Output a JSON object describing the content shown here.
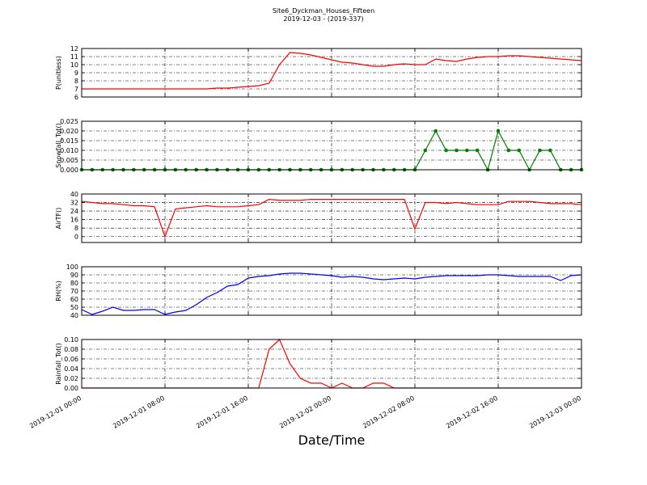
{
  "title": "Site6_Dyckman_Houses_Fifteen",
  "subtitle": "2019-12-03 - (2019-337)",
  "xlabel": "Date/Time",
  "chart_data": [
    {
      "type": "line",
      "ylabel": "P(unitless)",
      "color": "#ff0000",
      "grid": true,
      "x": [
        "2019-12-01 00:00",
        "2019-12-01 01:00",
        "2019-12-01 02:00",
        "2019-12-01 03:00",
        "2019-12-01 04:00",
        "2019-12-01 05:00",
        "2019-12-01 06:00",
        "2019-12-01 07:00",
        "2019-12-01 08:00",
        "2019-12-01 09:00",
        "2019-12-01 10:00",
        "2019-12-01 11:00",
        "2019-12-01 12:00",
        "2019-12-01 13:00",
        "2019-12-01 14:00",
        "2019-12-01 15:00",
        "2019-12-01 16:00",
        "2019-12-01 17:00",
        "2019-12-01 18:00",
        "2019-12-01 19:00",
        "2019-12-01 20:00",
        "2019-12-01 21:00",
        "2019-12-01 22:00",
        "2019-12-01 23:00",
        "2019-12-02 00:00",
        "2019-12-02 01:00",
        "2019-12-02 02:00",
        "2019-12-02 03:00",
        "2019-12-02 04:00",
        "2019-12-02 05:00",
        "2019-12-02 06:00",
        "2019-12-02 07:00",
        "2019-12-02 08:00",
        "2019-12-02 09:00",
        "2019-12-02 10:00",
        "2019-12-02 11:00",
        "2019-12-02 12:00",
        "2019-12-02 13:00",
        "2019-12-02 14:00",
        "2019-12-02 15:00",
        "2019-12-02 16:00",
        "2019-12-02 17:00",
        "2019-12-02 18:00",
        "2019-12-02 19:00",
        "2019-12-02 20:00",
        "2019-12-02 21:00",
        "2019-12-02 22:00",
        "2019-12-02 23:00",
        "2019-12-03 00:00"
      ],
      "values": [
        7.0,
        7.0,
        7.0,
        7.0,
        7.0,
        7.0,
        7.0,
        7.0,
        7.0,
        7.0,
        7.0,
        7.0,
        7.0,
        7.1,
        7.1,
        7.2,
        7.3,
        7.4,
        7.7,
        10.0,
        11.5,
        11.4,
        11.2,
        10.9,
        10.6,
        10.3,
        10.2,
        10.0,
        9.8,
        9.8,
        10.0,
        10.1,
        10.0,
        10.0,
        10.7,
        10.5,
        10.4,
        10.7,
        10.9,
        11.0,
        11.0,
        11.1,
        11.1,
        11.0,
        10.9,
        10.8,
        10.7,
        10.6,
        10.5
      ],
      "xlim": [
        "2019-12-01 00:00",
        "2019-12-03 00:00"
      ],
      "xticks": [
        "2019-12-01 00:00",
        "2019-12-01 08:00",
        "2019-12-01 16:00",
        "2019-12-02 00:00",
        "2019-12-02 08:00",
        "2019-12-02 16:00",
        "2019-12-03 00:00"
      ],
      "ylim": [
        6,
        12
      ],
      "yticks": [
        6,
        7,
        8,
        9,
        10,
        11,
        12
      ]
    },
    {
      "type": "line",
      "ylabel": "Snowfall_Tot()",
      "color": "#007f00",
      "markers": true,
      "grid": true,
      "x": [
        "2019-12-01 00:00",
        "2019-12-01 01:00",
        "2019-12-01 02:00",
        "2019-12-01 03:00",
        "2019-12-01 04:00",
        "2019-12-01 05:00",
        "2019-12-01 06:00",
        "2019-12-01 07:00",
        "2019-12-01 08:00",
        "2019-12-01 09:00",
        "2019-12-01 10:00",
        "2019-12-01 11:00",
        "2019-12-01 12:00",
        "2019-12-01 13:00",
        "2019-12-01 14:00",
        "2019-12-01 15:00",
        "2019-12-01 16:00",
        "2019-12-01 17:00",
        "2019-12-01 18:00",
        "2019-12-01 19:00",
        "2019-12-01 20:00",
        "2019-12-01 21:00",
        "2019-12-01 22:00",
        "2019-12-01 23:00",
        "2019-12-02 00:00",
        "2019-12-02 01:00",
        "2019-12-02 02:00",
        "2019-12-02 03:00",
        "2019-12-02 04:00",
        "2019-12-02 05:00",
        "2019-12-02 06:00",
        "2019-12-02 07:00",
        "2019-12-02 08:00",
        "2019-12-02 09:00",
        "2019-12-02 10:00",
        "2019-12-02 11:00",
        "2019-12-02 12:00",
        "2019-12-02 13:00",
        "2019-12-02 14:00",
        "2019-12-02 15:00",
        "2019-12-02 16:00",
        "2019-12-02 17:00",
        "2019-12-02 18:00",
        "2019-12-02 19:00",
        "2019-12-02 20:00",
        "2019-12-02 21:00",
        "2019-12-02 22:00",
        "2019-12-02 23:00",
        "2019-12-03 00:00"
      ],
      "values": [
        0,
        0,
        0,
        0,
        0,
        0,
        0,
        0,
        0,
        0,
        0,
        0,
        0,
        0,
        0,
        0,
        0,
        0,
        0,
        0,
        0,
        0,
        0,
        0,
        0,
        0,
        0,
        0,
        0,
        0,
        0,
        0,
        0,
        0.01,
        0.02,
        0.01,
        0.01,
        0.01,
        0.01,
        0,
        0.02,
        0.01,
        0.01,
        0,
        0.01,
        0.01,
        0,
        0,
        0
      ],
      "xlim": [
        "2019-12-01 00:00",
        "2019-12-03 00:00"
      ],
      "xticks": [
        "2019-12-01 00:00",
        "2019-12-01 08:00",
        "2019-12-01 16:00",
        "2019-12-02 00:00",
        "2019-12-02 08:00",
        "2019-12-02 16:00",
        "2019-12-03 00:00"
      ],
      "ylim": [
        0,
        0.025
      ],
      "yticks": [
        {
          "value": 0,
          "label": "0.000"
        },
        {
          "value": 0.005,
          "label": "0.005"
        },
        {
          "value": 0.01,
          "label": "0.010"
        },
        {
          "value": 0.015,
          "label": "0.015"
        },
        {
          "value": 0.02,
          "label": "0.020"
        },
        {
          "value": 0.025,
          "label": "0.025"
        }
      ]
    },
    {
      "type": "line",
      "ylabel": "AirTF()",
      "color": "#ff0000",
      "grid": true,
      "x": [
        "2019-12-01 00:00",
        "2019-12-01 01:00",
        "2019-12-01 02:00",
        "2019-12-01 03:00",
        "2019-12-01 04:00",
        "2019-12-01 05:00",
        "2019-12-01 06:00",
        "2019-12-01 07:00",
        "2019-12-01 08:00",
        "2019-12-01 09:00",
        "2019-12-01 10:00",
        "2019-12-01 11:00",
        "2019-12-01 12:00",
        "2019-12-01 13:00",
        "2019-12-01 14:00",
        "2019-12-01 15:00",
        "2019-12-01 16:00",
        "2019-12-01 17:00",
        "2019-12-01 18:00",
        "2019-12-01 19:00",
        "2019-12-01 20:00",
        "2019-12-01 21:00",
        "2019-12-01 22:00",
        "2019-12-01 23:00",
        "2019-12-02 00:00",
        "2019-12-02 01:00",
        "2019-12-02 02:00",
        "2019-12-02 03:00",
        "2019-12-02 04:00",
        "2019-12-02 05:00",
        "2019-12-02 06:00",
        "2019-12-02 07:00",
        "2019-12-02 08:00",
        "2019-12-02 09:00",
        "2019-12-02 10:00",
        "2019-12-02 11:00",
        "2019-12-02 12:00",
        "2019-12-02 13:00",
        "2019-12-02 14:00",
        "2019-12-02 15:00",
        "2019-12-02 16:00",
        "2019-12-02 17:00",
        "2019-12-02 18:00",
        "2019-12-02 19:00",
        "2019-12-02 20:00",
        "2019-12-02 21:00",
        "2019-12-02 22:00",
        "2019-12-02 23:00",
        "2019-12-03 00:00"
      ],
      "values": [
        33,
        32,
        31,
        31,
        30,
        29,
        29,
        28,
        0,
        26,
        27,
        28,
        29,
        28,
        28,
        28,
        29,
        30,
        35,
        34,
        34,
        34,
        35,
        35,
        35,
        35,
        35,
        35,
        35,
        35,
        35,
        35,
        7,
        32,
        32,
        31,
        32,
        31,
        30,
        30,
        30,
        33,
        33,
        33,
        32,
        31,
        31,
        31,
        30
      ],
      "xlim": [
        "2019-12-01 00:00",
        "2019-12-03 00:00"
      ],
      "xticks": [
        "2019-12-01 00:00",
        "2019-12-01 08:00",
        "2019-12-01 16:00",
        "2019-12-02 00:00",
        "2019-12-02 08:00",
        "2019-12-02 16:00",
        "2019-12-03 00:00"
      ],
      "ylim": [
        -5.5,
        40
      ],
      "yticks": [
        0,
        8,
        16,
        24,
        32,
        40
      ]
    },
    {
      "type": "line",
      "ylabel": "RH(%)",
      "color": "#0000ff",
      "grid": true,
      "x": [
        "2019-12-01 00:00",
        "2019-12-01 01:00",
        "2019-12-01 02:00",
        "2019-12-01 03:00",
        "2019-12-01 04:00",
        "2019-12-01 05:00",
        "2019-12-01 06:00",
        "2019-12-01 07:00",
        "2019-12-01 08:00",
        "2019-12-01 09:00",
        "2019-12-01 10:00",
        "2019-12-01 11:00",
        "2019-12-01 12:00",
        "2019-12-01 13:00",
        "2019-12-01 14:00",
        "2019-12-01 15:00",
        "2019-12-01 16:00",
        "2019-12-01 17:00",
        "2019-12-01 18:00",
        "2019-12-01 19:00",
        "2019-12-01 20:00",
        "2019-12-01 21:00",
        "2019-12-01 22:00",
        "2019-12-01 23:00",
        "2019-12-02 00:00",
        "2019-12-02 01:00",
        "2019-12-02 02:00",
        "2019-12-02 03:00",
        "2019-12-02 04:00",
        "2019-12-02 05:00",
        "2019-12-02 06:00",
        "2019-12-02 07:00",
        "2019-12-02 08:00",
        "2019-12-02 09:00",
        "2019-12-02 10:00",
        "2019-12-02 11:00",
        "2019-12-02 12:00",
        "2019-12-02 13:00",
        "2019-12-02 14:00",
        "2019-12-02 15:00",
        "2019-12-02 16:00",
        "2019-12-02 17:00",
        "2019-12-02 18:00",
        "2019-12-02 19:00",
        "2019-12-02 20:00",
        "2019-12-02 21:00",
        "2019-12-02 22:00",
        "2019-12-02 23:00",
        "2019-12-03 00:00"
      ],
      "values": [
        47,
        41,
        45,
        50,
        46,
        46,
        47,
        47,
        41,
        44,
        46,
        53,
        62,
        68,
        76,
        78,
        86,
        88,
        89,
        91,
        92,
        92,
        91,
        90,
        89,
        87,
        88,
        87,
        85,
        84,
        85,
        86,
        85,
        87,
        88,
        89,
        89,
        89,
        89,
        90,
        90,
        89,
        88,
        88,
        88,
        88,
        83,
        89,
        90
      ],
      "xlim": [
        "2019-12-01 00:00",
        "2019-12-03 00:00"
      ],
      "xticks": [
        "2019-12-01 00:00",
        "2019-12-01 08:00",
        "2019-12-01 16:00",
        "2019-12-02 00:00",
        "2019-12-02 08:00",
        "2019-12-02 16:00",
        "2019-12-03 00:00"
      ],
      "ylim": [
        40,
        100
      ],
      "yticks": [
        40,
        50,
        60,
        70,
        80,
        90,
        100
      ]
    },
    {
      "type": "line",
      "ylabel": "Rainfall_Tot()",
      "color": "#ff0000",
      "grid": true,
      "x": [
        "2019-12-01 00:00",
        "2019-12-01 01:00",
        "2019-12-01 02:00",
        "2019-12-01 03:00",
        "2019-12-01 04:00",
        "2019-12-01 05:00",
        "2019-12-01 06:00",
        "2019-12-01 07:00",
        "2019-12-01 08:00",
        "2019-12-01 09:00",
        "2019-12-01 10:00",
        "2019-12-01 11:00",
        "2019-12-01 12:00",
        "2019-12-01 13:00",
        "2019-12-01 14:00",
        "2019-12-01 15:00",
        "2019-12-01 16:00",
        "2019-12-01 17:00",
        "2019-12-01 18:00",
        "2019-12-01 19:00",
        "2019-12-01 20:00",
        "2019-12-01 21:00",
        "2019-12-01 22:00",
        "2019-12-01 23:00",
        "2019-12-02 00:00",
        "2019-12-02 01:00",
        "2019-12-02 02:00",
        "2019-12-02 03:00",
        "2019-12-02 04:00",
        "2019-12-02 05:00",
        "2019-12-02 06:00",
        "2019-12-02 07:00",
        "2019-12-02 08:00",
        "2019-12-02 09:00",
        "2019-12-02 10:00",
        "2019-12-02 11:00",
        "2019-12-02 12:00",
        "2019-12-02 13:00",
        "2019-12-02 14:00",
        "2019-12-02 15:00",
        "2019-12-02 16:00",
        "2019-12-02 17:00",
        "2019-12-02 18:00",
        "2019-12-02 19:00",
        "2019-12-02 20:00",
        "2019-12-02 21:00",
        "2019-12-02 22:00",
        "2019-12-02 23:00",
        "2019-12-03 00:00"
      ],
      "values": [
        0,
        0,
        0,
        0,
        0,
        0,
        0,
        0,
        0,
        0,
        0,
        0,
        0,
        0,
        0,
        0,
        0,
        0,
        0.08,
        0.1,
        0.05,
        0.02,
        0.01,
        0.01,
        0,
        0.01,
        0,
        0,
        0.01,
        0.01,
        0,
        0,
        0,
        0,
        0,
        0,
        0,
        0,
        0,
        0,
        0,
        0,
        0,
        0,
        0,
        0,
        0,
        0,
        0
      ],
      "xlim": [
        "2019-12-01 00:00",
        "2019-12-03 00:00"
      ],
      "xticks": [
        "2019-12-01 00:00",
        "2019-12-01 08:00",
        "2019-12-01 16:00",
        "2019-12-02 00:00",
        "2019-12-02 08:00",
        "2019-12-02 16:00",
        "2019-12-03 00:00"
      ],
      "ylim": [
        0,
        0.1
      ],
      "yticks": [
        {
          "value": 0,
          "label": "0.00"
        },
        {
          "value": 0.02,
          "label": "0.02"
        },
        {
          "value": 0.04,
          "label": "0.04"
        },
        {
          "value": 0.06,
          "label": "0.06"
        },
        {
          "value": 0.08,
          "label": "0.08"
        },
        {
          "value": 0.1,
          "label": "0.10"
        }
      ]
    }
  ]
}
